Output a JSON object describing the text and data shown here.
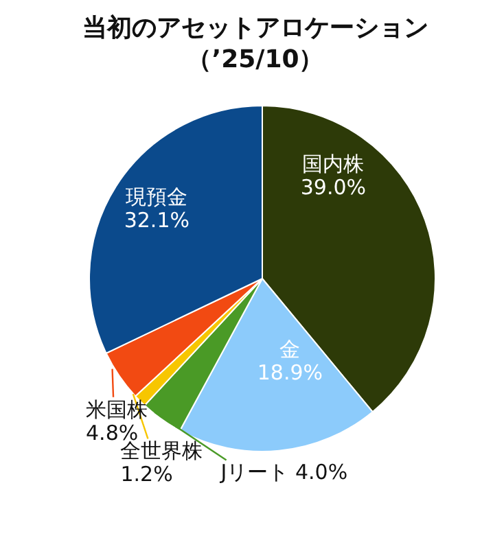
{
  "chart_data": {
    "type": "pie",
    "title": "当初のアセットアロケーション",
    "subtitle": "（’25/10）",
    "categories": [
      "国内株",
      "金",
      "Jリート",
      "全世界株",
      "米国株",
      "現預金"
    ],
    "values": [
      39.0,
      18.9,
      4.0,
      1.2,
      4.8,
      32.1
    ],
    "value_labels": [
      "39.0%",
      "18.9%",
      "4.0%",
      "1.2%",
      "4.8%",
      "32.1%"
    ],
    "colors": [
      "#2d3a08",
      "#8ccbfb",
      "#4a9a26",
      "#f7c600",
      "#f24a12",
      "#0b4a8c"
    ],
    "legend": false
  }
}
